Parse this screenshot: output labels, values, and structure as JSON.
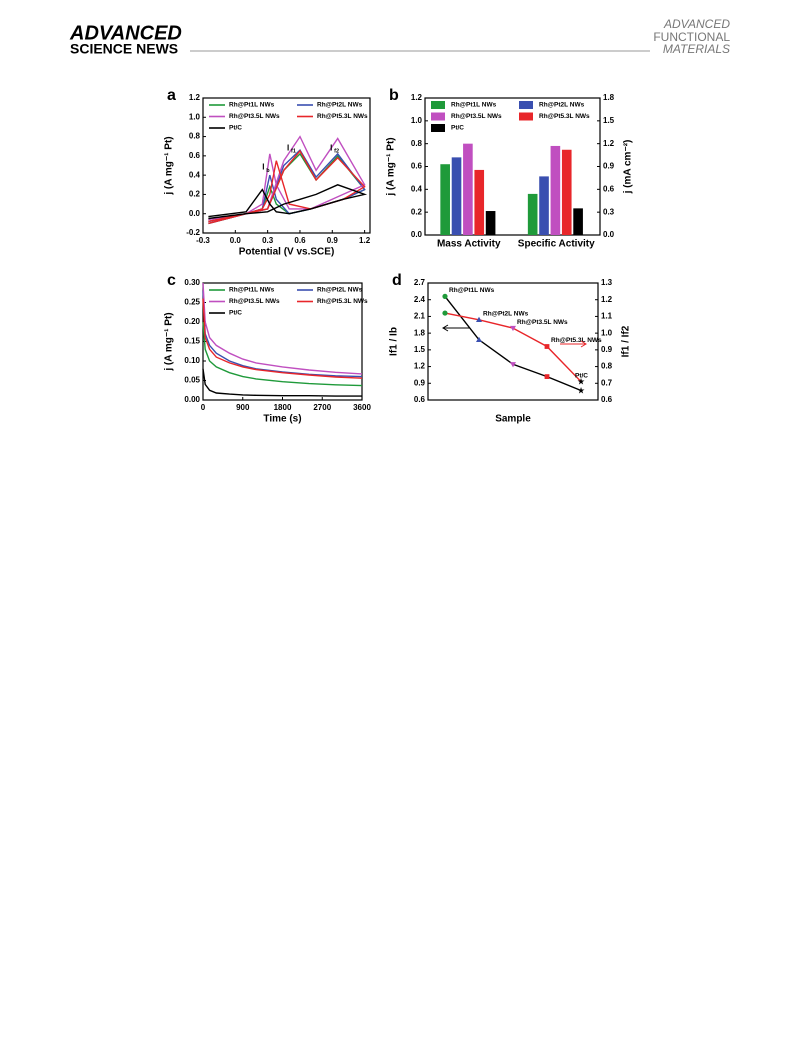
{
  "header": {
    "left_top": "ADVANCED",
    "left_bottom": "SCIENCE NEWS",
    "right_lines": [
      "ADVANCED",
      "FUNCTIONAL",
      "MATERIALS"
    ]
  },
  "chart_data": [
    {
      "type": "line",
      "panel": "a",
      "xlabel": "Potential (V vs.SCE)",
      "ylabel": "j (A mg⁻¹ Pt)",
      "x": [
        -0.25,
        0.1,
        0.3,
        0.45,
        0.6,
        0.75,
        0.95,
        1.2,
        1.0,
        0.7,
        0.5,
        0.38,
        0.32,
        0.25,
        0.1,
        -0.25
      ],
      "xlim": [
        -0.3,
        1.25
      ],
      "xticks": [
        -0.3,
        {
          "value": 0,
          "label": "0.0"
        },
        0.3,
        0.6,
        0.9,
        1.2
      ],
      "ylim": [
        -0.2,
        1.2
      ],
      "yticks": [
        -0.2,
        {
          "value": 0,
          "label": "0.0"
        },
        0.2,
        0.4,
        0.6,
        0.8,
        {
          "value": 1,
          "label": "1.0"
        },
        1.2
      ],
      "series": [
        {
          "name": "Rh@Pt1L NWs",
          "color": "#1f9a3a",
          "values": [
            -0.1,
            0,
            0.05,
            0.45,
            0.62,
            0.35,
            0.6,
            0.25,
            0.15,
            0.05,
            0,
            0.1,
            0.28,
            0.05,
            0,
            -0.08
          ]
        },
        {
          "name": "Rh@Pt2L NWs",
          "color": "#3a4fb0",
          "values": [
            -0.1,
            0,
            0.05,
            0.5,
            0.66,
            0.38,
            0.62,
            0.25,
            0.15,
            0.05,
            0,
            0.15,
            0.4,
            0.05,
            0,
            -0.08
          ]
        },
        {
          "name": "Rh@Pt3.5L NWs",
          "color": "#c04fc0",
          "values": [
            -0.08,
            0,
            0.05,
            0.55,
            0.8,
            0.45,
            0.78,
            0.3,
            0.2,
            0.05,
            0.05,
            0.3,
            0.62,
            0.1,
            0,
            -0.06
          ]
        },
        {
          "name": "Rh@Pt5.3L NWs",
          "color": "#e8262a",
          "values": [
            -0.1,
            0,
            0.05,
            0.45,
            0.65,
            0.35,
            0.58,
            0.28,
            0.15,
            0.05,
            0.1,
            0.55,
            0.2,
            0.05,
            0,
            -0.08
          ]
        },
        {
          "name": "Pt/C",
          "color": "#000000",
          "values": [
            -0.05,
            0,
            0.02,
            0.1,
            0.15,
            0.2,
            0.3,
            0.2,
            0.15,
            0.05,
            0,
            0.02,
            0.1,
            0.25,
            0.02,
            -0.03
          ]
        }
      ],
      "annotations": [
        {
          "text": "I",
          "sub": "b",
          "x": 0.25,
          "y": 0.48
        },
        {
          "text": "I",
          "sub": "f1",
          "x": 0.48,
          "y": 0.68
        },
        {
          "text": "I",
          "sub": "f2",
          "x": 0.88,
          "y": 0.68
        }
      ]
    },
    {
      "type": "bar",
      "panel": "b",
      "ylabel": "j (A mg⁻¹ Pt)",
      "y2label": "j (mA cm⁻²)",
      "categories": [
        "Mass Activity",
        "Specific Activity"
      ],
      "category_axis": [
        "y",
        "y2"
      ],
      "ylim": [
        0,
        1.2
      ],
      "yticks": [
        {
          "value": 0,
          "label": "0.0"
        },
        0.2,
        0.4,
        0.6,
        0.8,
        {
          "value": 1,
          "label": "1.0"
        },
        1.2
      ],
      "y2lim": [
        0,
        1.8
      ],
      "y2ticks": [
        {
          "value": 0,
          "label": "0.0"
        },
        0.3,
        0.6,
        0.9,
        1.2,
        1.5,
        1.8
      ],
      "series": [
        {
          "name": "Rh@Pt1L NWs",
          "color": "#1f9a3a",
          "values": [
            0.62,
            0.54
          ]
        },
        {
          "name": "Rh@Pt2L NWs",
          "color": "#3a4fb0",
          "values": [
            0.68,
            0.77
          ]
        },
        {
          "name": "Rh@Pt3.5L NWs",
          "color": "#c04fc0",
          "values": [
            0.8,
            1.17
          ]
        },
        {
          "name": "Rh@Pt5.3L NWs",
          "color": "#e8262a",
          "values": [
            0.57,
            1.12
          ]
        },
        {
          "name": "Pt/C",
          "color": "#000000",
          "values": [
            0.21,
            0.35
          ]
        }
      ]
    },
    {
      "type": "line",
      "panel": "c",
      "xlabel": "Time (s)",
      "ylabel": "j (A mg⁻¹ Pt)",
      "x": [
        0,
        50,
        150,
        300,
        600,
        900,
        1200,
        1800,
        2400,
        3000,
        3600
      ],
      "xlim": [
        0,
        3600
      ],
      "xticks": [
        0,
        900,
        1800,
        2700,
        3600
      ],
      "ylim": [
        0,
        0.3
      ],
      "yticks": [
        {
          "value": 0,
          "label": "0.00"
        },
        {
          "value": 0.05,
          "label": "0.05"
        },
        {
          "value": 0.1,
          "label": "0.10"
        },
        {
          "value": 0.15,
          "label": "0.15"
        },
        {
          "value": 0.2,
          "label": "0.20"
        },
        {
          "value": 0.25,
          "label": "0.25"
        },
        {
          "value": 0.3,
          "label": "0.30"
        }
      ],
      "series": [
        {
          "name": "Rh@Pt1L NWs",
          "color": "#1f9a3a",
          "values": [
            0.2,
            0.13,
            0.1,
            0.085,
            0.07,
            0.06,
            0.054,
            0.047,
            0.042,
            0.039,
            0.037
          ]
        },
        {
          "name": "Rh@Pt2L NWs",
          "color": "#3a4fb0",
          "values": [
            0.28,
            0.17,
            0.14,
            0.12,
            0.1,
            0.088,
            0.08,
            0.072,
            0.066,
            0.062,
            0.06
          ]
        },
        {
          "name": "Rh@Pt3.5L NWs",
          "color": "#c04fc0",
          "values": [
            0.3,
            0.2,
            0.16,
            0.14,
            0.12,
            0.105,
            0.095,
            0.085,
            0.077,
            0.071,
            0.067
          ]
        },
        {
          "name": "Rh@Pt5.3L NWs",
          "color": "#e8262a",
          "values": [
            0.26,
            0.16,
            0.13,
            0.11,
            0.095,
            0.085,
            0.078,
            0.07,
            0.064,
            0.059,
            0.056
          ]
        },
        {
          "name": "Pt/C",
          "color": "#000000",
          "values": [
            0.08,
            0.04,
            0.025,
            0.018,
            0.015,
            0.013,
            0.012,
            0.011,
            0.011,
            0.01,
            0.01
          ]
        }
      ]
    },
    {
      "type": "line",
      "panel": "d",
      "xlabel": "Sample",
      "ylabel": "If1 / Ib",
      "y2label": "If1 / If2",
      "categories": [
        "Rh@Pt1L NWs",
        "Rh@Pt2L NWs",
        "Rh@Pt3.5L NWs",
        "Rh@Pt5.3L NWs",
        "Pt/C"
      ],
      "marker_colors": [
        "#1f9a3a",
        "#3a4fb0",
        "#c04fc0",
        "#e8262a",
        "#000000"
      ],
      "markers": [
        "circle",
        "triangle",
        "triangle-down",
        "square",
        "star"
      ],
      "ylim": [
        0.6,
        2.7
      ],
      "yticks": [
        0.6,
        0.9,
        1.2,
        1.5,
        1.8,
        2.1,
        2.4,
        2.7
      ],
      "y2lim": [
        0.6,
        1.3
      ],
      "y2ticks": [
        0.6,
        0.7,
        0.8,
        0.9,
        {
          "value": 1,
          "label": "1.0"
        },
        1.1,
        1.2,
        1.3
      ],
      "series": [
        {
          "name": "If1 / Ib",
          "color": "#000000",
          "values": [
            2.46,
            1.68,
            1.24,
            1.02,
            0.77
          ]
        },
        {
          "name": "If1 / If2",
          "color": "#e8262a",
          "axis": "y2",
          "values": [
            1.12,
            1.08,
            1.03,
            0.92,
            0.71
          ]
        }
      ]
    }
  ]
}
